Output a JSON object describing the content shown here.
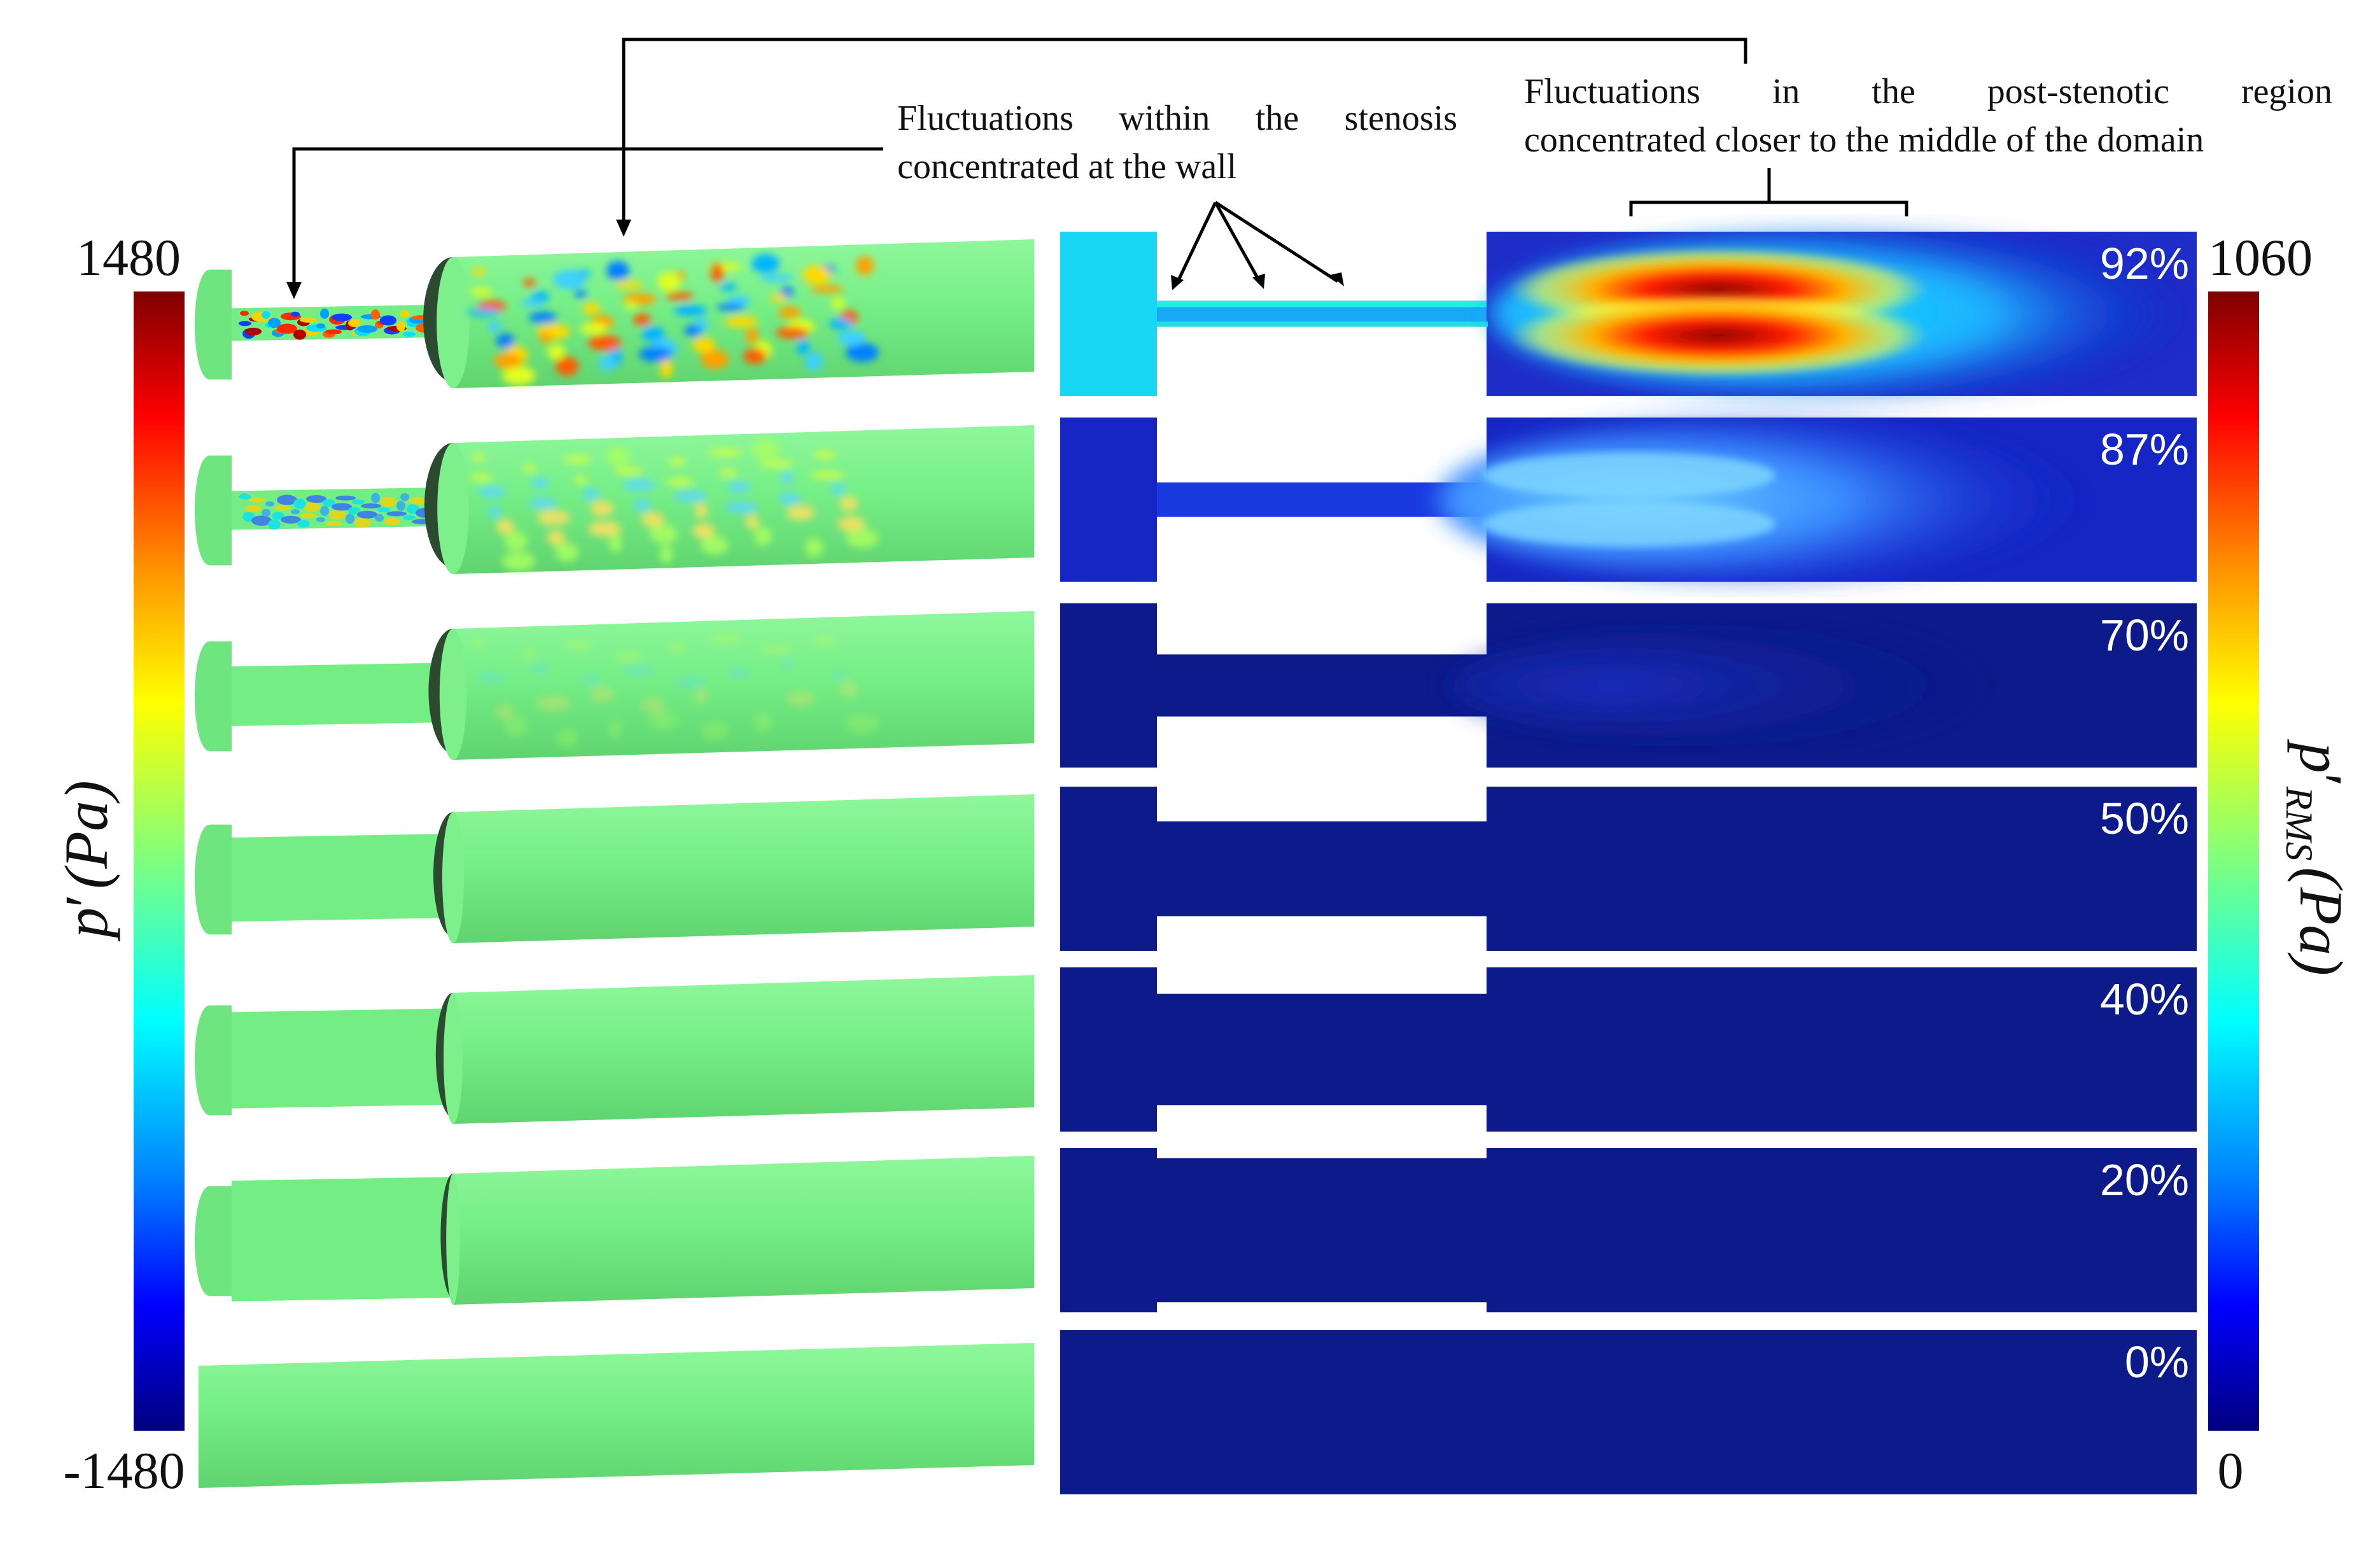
{
  "annotations": {
    "wall": {
      "line1": "Fluctuations within the stenosis",
      "line2": "concentrated at the wall"
    },
    "post": {
      "line1": "Fluctuations in the post-stenotic region",
      "line2": "concentrated closer to the middle of the domain"
    }
  },
  "left_colorbar": {
    "max": "1480",
    "min": "-1480",
    "label_main": "p",
    "label_prime": "′",
    "label_unit": "(Pa)"
  },
  "right_colorbar": {
    "max": "1060",
    "min": "0",
    "label_main": "p",
    "label_prime": "′",
    "label_sub": "RMS",
    "label_unit": "(Pa)"
  },
  "rows": [
    {
      "label": "92%",
      "occlusion": 0.92,
      "intensity": 1.0
    },
    {
      "label": "87%",
      "occlusion": 0.87,
      "intensity": 0.55
    },
    {
      "label": "70%",
      "occlusion": 0.7,
      "intensity": 0.06
    },
    {
      "label": "50%",
      "occlusion": 0.5,
      "intensity": 0.0
    },
    {
      "label": "40%",
      "occlusion": 0.4,
      "intensity": 0.0
    },
    {
      "label": "20%",
      "occlusion": 0.2,
      "intensity": 0.0
    },
    {
      "label": "0%",
      "occlusion": 0.0,
      "intensity": 0.0
    }
  ],
  "colors": {
    "vessel_green": "#74ee84",
    "field_dark_blue": "#0c1a8a",
    "jet_red": "#8b0000"
  }
}
